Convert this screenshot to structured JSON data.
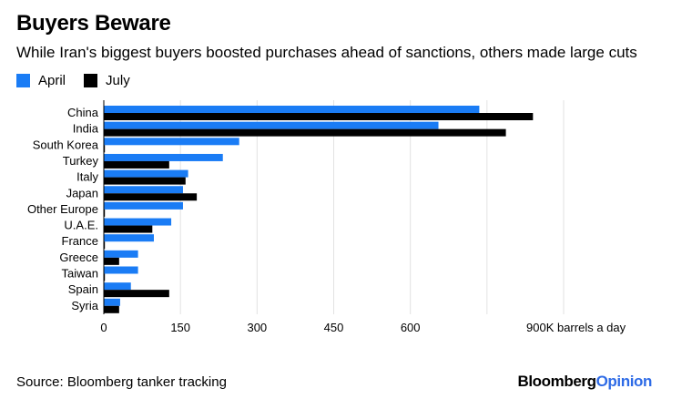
{
  "header": {
    "title": "Buyers Beware",
    "subtitle": "While Iran's biggest buyers boosted purchases ahead of sanctions, others made large cuts"
  },
  "footer": {
    "source": "Source: Bloomberg tanker tracking",
    "brand_part1": "Bloomberg",
    "brand_part2": "Opinion"
  },
  "colors": {
    "april": "#1a7cf5",
    "july": "#000000",
    "grid": "#e2e2e2"
  },
  "chart_data": {
    "type": "bar",
    "orientation": "horizontal",
    "categories": [
      "China",
      "India",
      "South Korea",
      "Turkey",
      "Italy",
      "Japan",
      "Other Europe",
      "U.A.E.",
      "France",
      "Greece",
      "Taiwan",
      "Spain",
      "Syria"
    ],
    "series": [
      {
        "name": "April",
        "values": [
          735,
          655,
          265,
          233,
          165,
          155,
          155,
          132,
          98,
          67,
          67,
          53,
          32
        ]
      },
      {
        "name": "July",
        "values": [
          840,
          787,
          0,
          128,
          160,
          182,
          0,
          95,
          0,
          30,
          0,
          128,
          30
        ]
      }
    ],
    "xlim": [
      0,
      900
    ],
    "xticks": [
      0,
      150,
      300,
      450,
      600,
      900
    ],
    "xtick_labels": [
      "0",
      "150",
      "300",
      "450",
      "600",
      "900K barrels a day"
    ],
    "grid": true,
    "legend": "top-left"
  }
}
